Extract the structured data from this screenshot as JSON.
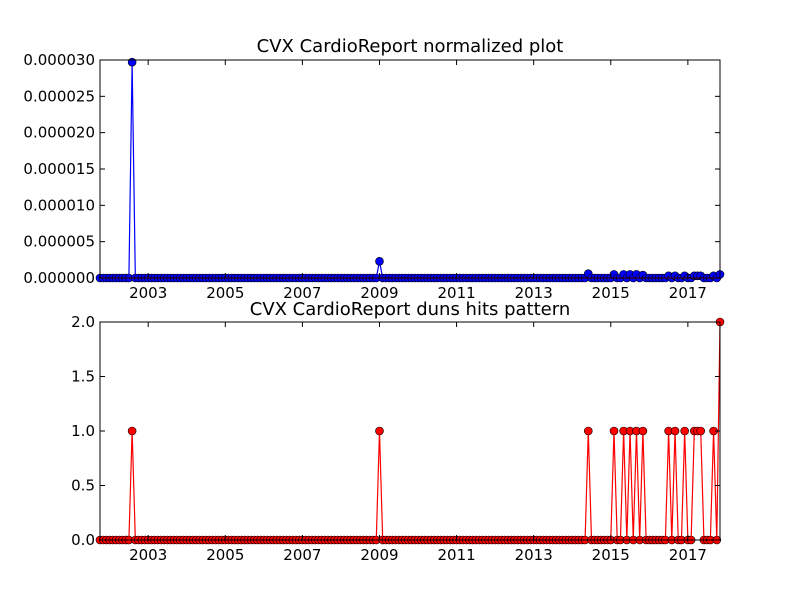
{
  "chart_data": [
    {
      "type": "line",
      "title": "CVX CardioReport normalized plot",
      "xlabel": "",
      "ylabel": "",
      "xlim": [
        "2001-10",
        "2017-11"
      ],
      "ylim": [
        0,
        3e-05
      ],
      "grid": false,
      "x_ticks": [
        "2003",
        "2005",
        "2007",
        "2009",
        "2011",
        "2013",
        "2015",
        "2017"
      ],
      "y_ticks": [
        "0.000000",
        "0.000005",
        "0.000010",
        "0.000015",
        "0.000020",
        "0.000025",
        "0.000030"
      ],
      "series": [
        {
          "color": "#0000ff",
          "marker": "circle",
          "baseline_value": 0,
          "points": [
            {
              "x": "2002-08",
              "y": 2.97e-05
            },
            {
              "x": "2009-01",
              "y": 2.3e-06
            },
            {
              "x": "2014-06",
              "y": 6e-07
            },
            {
              "x": "2015-02",
              "y": 5e-07
            },
            {
              "x": "2015-05",
              "y": 5e-07
            },
            {
              "x": "2015-07",
              "y": 5e-07
            },
            {
              "x": "2015-09",
              "y": 5e-07
            },
            {
              "x": "2015-11",
              "y": 4e-07
            },
            {
              "x": "2016-07",
              "y": 3e-07
            },
            {
              "x": "2016-09",
              "y": 3e-07
            },
            {
              "x": "2016-12",
              "y": 3e-07
            },
            {
              "x": "2017-03",
              "y": 3e-07
            },
            {
              "x": "2017-04",
              "y": 3e-07
            },
            {
              "x": "2017-05",
              "y": 3e-07
            },
            {
              "x": "2017-09",
              "y": 3e-07
            },
            {
              "x": "2017-11",
              "y": 5e-07
            }
          ]
        },
        {
          "color": "#ff0000",
          "marker": "none",
          "baseline_value": 0,
          "points": []
        }
      ]
    },
    {
      "type": "line",
      "title": "CVX CardioReport duns hits pattern",
      "xlabel": "",
      "ylabel": "",
      "xlim": [
        "2001-10",
        "2017-11"
      ],
      "ylim": [
        0,
        2.0
      ],
      "grid": false,
      "x_ticks": [
        "2003",
        "2005",
        "2007",
        "2009",
        "2011",
        "2013",
        "2015",
        "2017"
      ],
      "y_ticks": [
        "0.0",
        "0.5",
        "1.0",
        "1.5",
        "2.0"
      ],
      "series": [
        {
          "color": "#ff0000",
          "marker": "circle",
          "baseline_value": 0,
          "points": [
            {
              "x": "2002-08",
              "y": 1
            },
            {
              "x": "2009-01",
              "y": 1
            },
            {
              "x": "2014-06",
              "y": 1
            },
            {
              "x": "2015-02",
              "y": 1
            },
            {
              "x": "2015-05",
              "y": 1
            },
            {
              "x": "2015-07",
              "y": 1
            },
            {
              "x": "2015-09",
              "y": 1
            },
            {
              "x": "2015-11",
              "y": 1
            },
            {
              "x": "2016-07",
              "y": 1
            },
            {
              "x": "2016-09",
              "y": 1
            },
            {
              "x": "2016-12",
              "y": 1
            },
            {
              "x": "2017-03",
              "y": 1
            },
            {
              "x": "2017-04",
              "y": 1
            },
            {
              "x": "2017-05",
              "y": 1
            },
            {
              "x": "2017-09",
              "y": 1
            },
            {
              "x": "2017-11",
              "y": 2
            }
          ]
        }
      ]
    }
  ]
}
